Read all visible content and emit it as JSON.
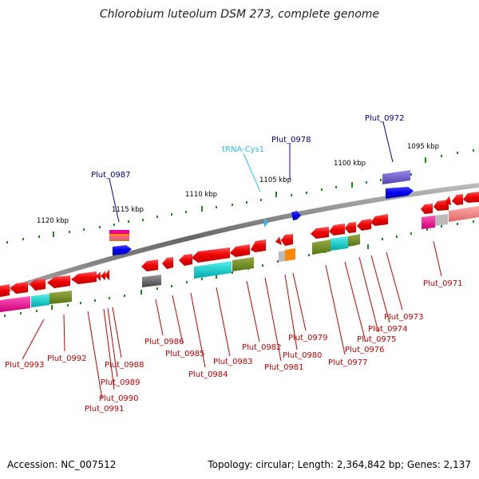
{
  "title": "Chlorobium luteolum DSM 273, complete genome",
  "accession": "Accession: NC_007512",
  "topology": "Topology: circular; Length: 2,364,842 bp; Genes: 2,137",
  "kbp_labels": [
    "1095 kbp",
    "1100 kbp",
    "1105 kbp",
    "1110 kbp",
    "1115 kbp",
    "1120 kbp"
  ],
  "top_labels": [
    "Plut_0972",
    "Plut_0978",
    "tRNA-Cys1",
    "Plut_0987"
  ],
  "bottom_labels": [
    "Plut_0971",
    "Plut_0973",
    "Plut_0974",
    "Plut_0975",
    "Plut_0976",
    "Plut_0977",
    "Plut_0979",
    "Plut_0980",
    "Plut_0981",
    "Plut_0982",
    "Plut_0983",
    "Plut_0984",
    "Plut_0985",
    "Plut_0986",
    "Plut_0988",
    "Plut_0989",
    "Plut_0990",
    "Plut_0991",
    "Plut_0992",
    "Plut_0993"
  ],
  "colors": {
    "forward_gene": "#0000ee",
    "reverse_gene": "#ee0000",
    "trna": "#33bbee",
    "backbone": "#888888",
    "tick": "#228822",
    "label_top": "#000099",
    "label_bottom": "#cc0000"
  }
}
